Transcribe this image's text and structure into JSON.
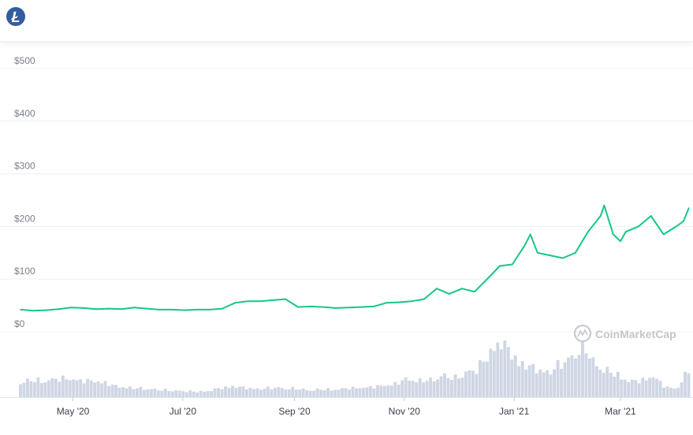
{
  "header": {
    "logo_icon": "litecoin-icon",
    "logo_glyph": "Ł",
    "logo_color": "#345d9d"
  },
  "watermark": {
    "text": "CoinMarketCap",
    "icon": "coinmarketcap-icon"
  },
  "chart_data": {
    "type": "line",
    "title": "",
    "xlabel": "",
    "ylabel": "",
    "ylim": [
      0,
      500
    ],
    "y_ticks": [
      "$0",
      "$100",
      "$200",
      "$300",
      "$400",
      "$500"
    ],
    "y_tick_values": [
      0,
      100,
      200,
      300,
      400,
      500
    ],
    "x_ticks": [
      "May '20",
      "Jul '20",
      "Sep '20",
      "Nov '20",
      "Jan '21",
      "Mar '21"
    ],
    "x_tick_dates": [
      "2020-05-01",
      "2020-07-01",
      "2020-09-01",
      "2020-11-01",
      "2021-01-01",
      "2021-03-01"
    ],
    "grid": true,
    "line_color": "#16c784",
    "volume_color": "#cfd6e4",
    "series": [
      {
        "values": [
          {
            "x": "2020-04-02",
            "y": 42
          },
          {
            "x": "2020-04-09",
            "y": 40
          },
          {
            "x": "2020-04-16",
            "y": 41
          },
          {
            "x": "2020-04-23",
            "y": 43
          },
          {
            "x": "2020-04-30",
            "y": 46
          },
          {
            "x": "2020-05-07",
            "y": 45
          },
          {
            "x": "2020-05-14",
            "y": 43
          },
          {
            "x": "2020-05-21",
            "y": 44
          },
          {
            "x": "2020-05-28",
            "y": 43
          },
          {
            "x": "2020-06-04",
            "y": 46
          },
          {
            "x": "2020-06-11",
            "y": 44
          },
          {
            "x": "2020-06-18",
            "y": 42
          },
          {
            "x": "2020-06-25",
            "y": 42
          },
          {
            "x": "2020-07-02",
            "y": 41
          },
          {
            "x": "2020-07-09",
            "y": 42
          },
          {
            "x": "2020-07-16",
            "y": 42
          },
          {
            "x": "2020-07-23",
            "y": 44
          },
          {
            "x": "2020-07-30",
            "y": 55
          },
          {
            "x": "2020-08-06",
            "y": 58
          },
          {
            "x": "2020-08-13",
            "y": 58
          },
          {
            "x": "2020-08-20",
            "y": 60
          },
          {
            "x": "2020-08-27",
            "y": 62
          },
          {
            "x": "2020-09-03",
            "y": 47
          },
          {
            "x": "2020-09-10",
            "y": 48
          },
          {
            "x": "2020-09-17",
            "y": 47
          },
          {
            "x": "2020-09-24",
            "y": 45
          },
          {
            "x": "2020-10-01",
            "y": 46
          },
          {
            "x": "2020-10-08",
            "y": 47
          },
          {
            "x": "2020-10-15",
            "y": 48
          },
          {
            "x": "2020-10-22",
            "y": 55
          },
          {
            "x": "2020-10-29",
            "y": 56
          },
          {
            "x": "2020-11-05",
            "y": 58
          },
          {
            "x": "2020-11-12",
            "y": 62
          },
          {
            "x": "2020-11-19",
            "y": 82
          },
          {
            "x": "2020-11-26",
            "y": 72
          },
          {
            "x": "2020-12-03",
            "y": 82
          },
          {
            "x": "2020-12-10",
            "y": 76
          },
          {
            "x": "2020-12-17",
            "y": 100
          },
          {
            "x": "2020-12-24",
            "y": 125
          },
          {
            "x": "2020-12-31",
            "y": 128
          },
          {
            "x": "2021-01-07",
            "y": 165
          },
          {
            "x": "2021-01-10",
            "y": 185
          },
          {
            "x": "2021-01-14",
            "y": 150
          },
          {
            "x": "2021-01-21",
            "y": 145
          },
          {
            "x": "2021-01-28",
            "y": 140
          },
          {
            "x": "2021-02-04",
            "y": 150
          },
          {
            "x": "2021-02-11",
            "y": 190
          },
          {
            "x": "2021-02-18",
            "y": 220
          },
          {
            "x": "2021-02-20",
            "y": 240
          },
          {
            "x": "2021-02-25",
            "y": 185
          },
          {
            "x": "2021-03-01",
            "y": 172
          },
          {
            "x": "2021-03-04",
            "y": 190
          },
          {
            "x": "2021-03-11",
            "y": 200
          },
          {
            "x": "2021-03-18",
            "y": 220
          },
          {
            "x": "2021-03-25",
            "y": 185
          },
          {
            "x": "2021-04-01",
            "y": 200
          },
          {
            "x": "2021-04-05",
            "y": 210
          },
          {
            "x": "2021-04-08",
            "y": 235
          }
        ]
      }
    ],
    "volume_relative": [
      0.28,
      0.3,
      0.3,
      0.32,
      0.34,
      0.3,
      0.29,
      0.28,
      0.2,
      0.18,
      0.16,
      0.15,
      0.13,
      0.12,
      0.11,
      0.1,
      0.11,
      0.16,
      0.2,
      0.17,
      0.15,
      0.16,
      0.17,
      0.16,
      0.14,
      0.13,
      0.14,
      0.14,
      0.16,
      0.17,
      0.18,
      0.21,
      0.24,
      0.33,
      0.3,
      0.3,
      0.4,
      0.33,
      0.45,
      0.5,
      0.8,
      1.0,
      0.75,
      0.58,
      0.5,
      0.45,
      0.58,
      0.72,
      0.95,
      0.6,
      0.47,
      0.4,
      0.28,
      0.3,
      0.38,
      0.18,
      0.15,
      0.5
    ]
  }
}
